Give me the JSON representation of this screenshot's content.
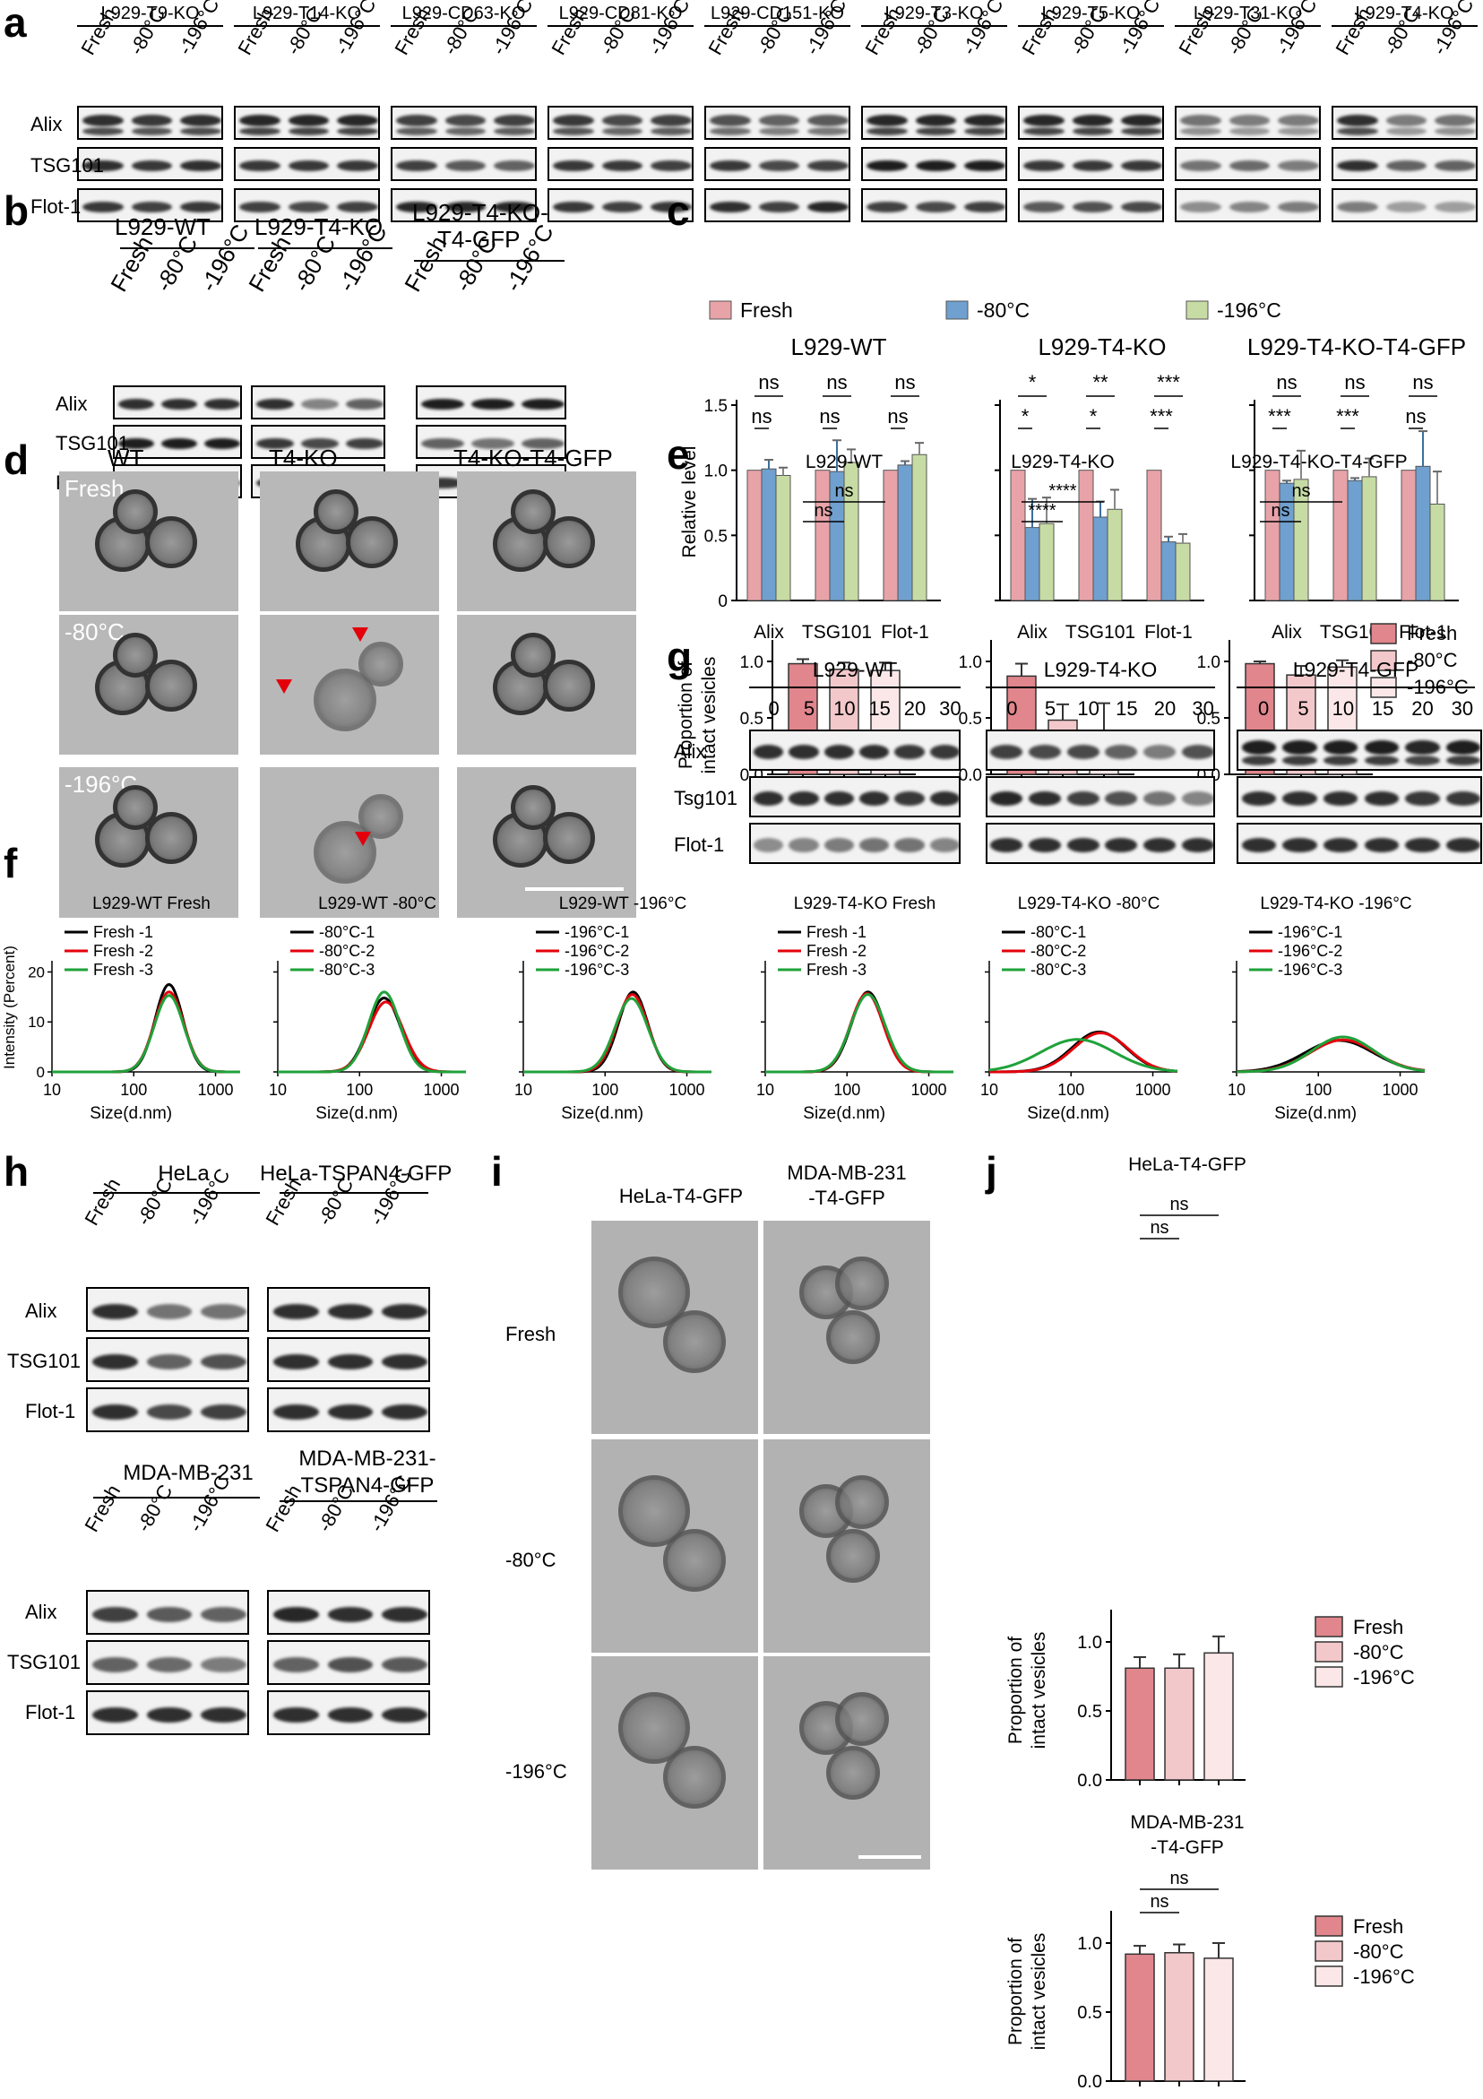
{
  "panels": {
    "a": "a",
    "b": "b",
    "c": "c",
    "d": "d",
    "e": "e",
    "f": "f",
    "g": "g",
    "h": "h",
    "i": "i",
    "j": "j"
  },
  "conditions": [
    "Fresh",
    "-80°C",
    "-196°C"
  ],
  "proteins": [
    "Alix",
    "TSG101",
    "Flot-1"
  ],
  "panel_a": {
    "cell_lines": [
      "L929-T9-KO",
      "L929-T14-KO",
      "L929-CD63-KO",
      "L929-CD81-KO",
      "L929-CD151-KO",
      "L929-T3-KO",
      "L929-T5-KO",
      "L929-T31-KO",
      "L929-T4-KO"
    ]
  },
  "panel_b": {
    "groups": [
      "L929-WT",
      "L929-T4-KO",
      "L929-T4-KO-\nT4-GFP"
    ],
    "group3_line1": "L929-T4-KO-",
    "group3_line2": "T4-GFP"
  },
  "panel_c": {
    "legend": [
      "Fresh",
      "-80°C",
      "-196°C"
    ],
    "ylabel": "Relative level",
    "titles": [
      "L929-WT",
      "L929-T4-KO",
      "L929-T4-KO-T4-GFP"
    ],
    "categories": [
      "Alix",
      "TSG101",
      "Flot-1"
    ],
    "yticks": [
      "0",
      "0.5",
      "1.0",
      "1.5"
    ],
    "sig": {
      "wt": [
        "ns",
        "ns",
        "ns",
        "ns",
        "ns",
        "ns"
      ],
      "ko": [
        "*",
        "*",
        "**",
        "*",
        "***",
        "***"
      ],
      "gfp": [
        "ns",
        "***",
        "ns",
        "***",
        "ns",
        "ns"
      ]
    }
  },
  "panel_d": {
    "cols": [
      "WT",
      "T4-KO",
      "T4-KO-T4-GFP"
    ],
    "rows": [
      "Fresh",
      "-80°C",
      "-196°C"
    ]
  },
  "panel_e": {
    "titles": [
      "L929-WT",
      "L929-T4-KO",
      "L929-T4-KO-T4-GFP"
    ],
    "ylabel_line1": "Proportion of",
    "ylabel_line2": "intact vesicles",
    "yticks": [
      "0.0",
      "0.5",
      "1.0"
    ],
    "legend": [
      "Fresh",
      "-80°C",
      "-196°C"
    ],
    "sig": {
      "wt": [
        "ns",
        "ns"
      ],
      "ko": [
        "****",
        "****"
      ],
      "gfp": [
        "ns",
        "ns"
      ]
    }
  },
  "panel_f": {
    "titles": [
      "L929-WT Fresh",
      "L929-WT -80°C",
      "L929-WT -196°C",
      "L929-T4-KO Fresh",
      "L929-T4-KO -80°C",
      "L929-T4-KO -196°C"
    ],
    "legends": [
      [
        "Fresh -1",
        "Fresh  -2",
        "Fresh -3"
      ],
      [
        "-80°C-1",
        "-80°C-2",
        "-80°C-3"
      ],
      [
        "-196°C-1",
        "-196°C-2",
        "-196°C-3"
      ],
      [
        "Fresh -1",
        "Fresh -2",
        "Fresh -3"
      ],
      [
        "-80°C-1",
        "-80°C-2",
        "-80°C-3"
      ],
      [
        "-196°C-1",
        "-196°C-2",
        "-196°C-3"
      ]
    ],
    "ylabel": "Intensity (Percent)",
    "xlabel": "Size(d.nm)",
    "xticks": [
      "10",
      "100",
      "1000"
    ],
    "yticks": [
      "0",
      "10",
      "20"
    ]
  },
  "panel_g": {
    "groups": [
      "L929-WT",
      "L929-T4-KO",
      "L929-T4-GFP"
    ],
    "times": [
      "0",
      "5",
      "10",
      "15",
      "20",
      "30"
    ],
    "rows": [
      "Alix",
      "Tsg101",
      "Flot-1"
    ]
  },
  "panel_h": {
    "top_groups": [
      "HeLa",
      "HeLa-TSPAN4-GFP"
    ],
    "bottom_groups": [
      "MDA-MB-231",
      "MDA-MB-231-",
      "TSPAN4-GFP"
    ]
  },
  "panel_i": {
    "cols": [
      "HeLa-T4-GFP",
      "MDA-MB-231",
      "-T4-GFP"
    ],
    "rows": [
      "Fresh",
      "-80°C",
      "-196°C"
    ]
  },
  "panel_j": {
    "title1": "HeLa-T4-GFP",
    "title2_line1": "MDA-MB-231",
    "title2_line2": "-T4-GFP",
    "yticks": [
      "0.0",
      "0.5",
      "1.0"
    ],
    "legend": [
      "Fresh",
      "-80°C",
      "-196°C"
    ],
    "sig": [
      "ns",
      "ns"
    ]
  },
  "chart_data": [
    {
      "type": "bar",
      "title": "L929-WT",
      "categories": [
        "Alix",
        "TSG101",
        "Flot-1"
      ],
      "ylabel": "Relative level",
      "ylim": [
        0,
        1.5
      ],
      "series": [
        {
          "name": "Fresh",
          "values": [
            1.0,
            1.0,
            1.0
          ],
          "errors": [
            0,
            0,
            0
          ]
        },
        {
          "name": "-80°C",
          "values": [
            1.01,
            0.99,
            1.04
          ],
          "errors": [
            0.07,
            0.24,
            0.03
          ]
        },
        {
          "name": "-196°C",
          "values": [
            0.96,
            1.06,
            1.12
          ],
          "errors": [
            0.06,
            0.1,
            0.09
          ]
        }
      ]
    },
    {
      "type": "bar",
      "title": "L929-T4-KO",
      "categories": [
        "Alix",
        "TSG101",
        "Flot-1"
      ],
      "ylim": [
        0,
        1.5
      ],
      "series": [
        {
          "name": "Fresh",
          "values": [
            1.0,
            1.0,
            1.0
          ],
          "errors": [
            0,
            0,
            0
          ]
        },
        {
          "name": "-80°C",
          "values": [
            0.56,
            0.64,
            0.45
          ],
          "errors": [
            0.22,
            0.12,
            0.04
          ]
        },
        {
          "name": "-196°C",
          "values": [
            0.59,
            0.7,
            0.44
          ],
          "errors": [
            0.2,
            0.15,
            0.07
          ]
        }
      ]
    },
    {
      "type": "bar",
      "title": "L929-T4-KO-T4-GFP",
      "categories": [
        "Alix",
        "TSG101",
        "Flot-1"
      ],
      "ylim": [
        0,
        1.5
      ],
      "series": [
        {
          "name": "Fresh",
          "values": [
            1.0,
            1.0,
            1.0
          ],
          "errors": [
            0,
            0,
            0
          ]
        },
        {
          "name": "-80°C",
          "values": [
            0.9,
            0.92,
            1.03
          ],
          "errors": [
            0.02,
            0.02,
            0.27
          ]
        },
        {
          "name": "-196°C",
          "values": [
            0.93,
            0.95,
            0.74
          ],
          "errors": [
            0.22,
            0.14,
            0.25
          ]
        }
      ]
    },
    {
      "type": "bar",
      "title": "L929-WT",
      "categories": [
        "Fresh",
        "-80°C",
        "-196°C"
      ],
      "ylabel": "Proportion of intact vesicles",
      "ylim": [
        0,
        1.2
      ],
      "values": [
        0.98,
        0.93,
        0.92
      ],
      "errors": [
        0.04,
        0.06,
        0.07
      ]
    },
    {
      "type": "bar",
      "title": "L929-T4-KO",
      "categories": [
        "Fresh",
        "-80°C",
        "-196°C"
      ],
      "ylim": [
        0,
        1.2
      ],
      "values": [
        0.87,
        0.48,
        0.38
      ],
      "errors": [
        0.11,
        0.14,
        0.25
      ]
    },
    {
      "type": "bar",
      "title": "L929-T4-KO-T4-GFP",
      "categories": [
        "Fresh",
        "-80°C",
        "-196°C"
      ],
      "ylim": [
        0,
        1.2
      ],
      "values": [
        0.98,
        0.88,
        0.95
      ],
      "errors": [
        0.02,
        0.08,
        0.06
      ]
    },
    {
      "type": "line",
      "title": "DLS size distributions",
      "xlabel": "Size(d.nm)",
      "ylabel": "Intensity (Percent)",
      "xscale": "log",
      "xlim": [
        10,
        2000
      ],
      "ylim": [
        0,
        20
      ],
      "peaks": [
        {
          "panel": "L929-WT Fresh",
          "series": [
            {
              "name": "Fresh -1",
              "peak_x": 270,
              "peak_y": 17.5,
              "sd": 0.17
            },
            {
              "name": "Fresh  -2",
              "peak_x": 270,
              "peak_y": 16.0,
              "sd": 0.18
            },
            {
              "name": "Fresh -3",
              "peak_x": 270,
              "peak_y": 15.3,
              "sd": 0.18
            }
          ]
        },
        {
          "panel": "L929-WT -80°C",
          "series": [
            {
              "name": "-80°C-1",
              "peak_x": 200,
              "peak_y": 14.8,
              "sd": 0.2
            },
            {
              "name": "-80°C-2",
              "peak_x": 210,
              "peak_y": 14.0,
              "sd": 0.21
            },
            {
              "name": "-80°C-3",
              "peak_x": 200,
              "peak_y": 16.0,
              "sd": 0.19
            }
          ]
        },
        {
          "panel": "L929-WT -196°C",
          "series": [
            {
              "name": "-196°C-1",
              "peak_x": 220,
              "peak_y": 16.0,
              "sd": 0.18
            },
            {
              "name": "-196°C-2",
              "peak_x": 215,
              "peak_y": 15.5,
              "sd": 0.19
            },
            {
              "name": "-196°C-3",
              "peak_x": 210,
              "peak_y": 14.7,
              "sd": 0.2
            }
          ]
        },
        {
          "panel": "L929-T4-KO Fresh",
          "series": [
            {
              "name": "Fresh -1",
              "peak_x": 180,
              "peak_y": 16.0,
              "sd": 0.2
            },
            {
              "name": "Fresh -2",
              "peak_x": 175,
              "peak_y": 15.7,
              "sd": 0.2
            },
            {
              "name": "Fresh -3",
              "peak_x": 180,
              "peak_y": 15.5,
              "sd": 0.21
            }
          ]
        },
        {
          "panel": "L929-T4-KO -80°C",
          "series": [
            {
              "name": "-80°C-1",
              "peak_x": 220,
              "peak_y": 8.0,
              "sd": 0.33
            },
            {
              "name": "-80°C-2",
              "peak_x": 230,
              "peak_y": 7.8,
              "sd": 0.33
            },
            {
              "name": "-80°C-3",
              "peak_x": 120,
              "peak_y": 6.5,
              "sd": 0.45
            }
          ]
        },
        {
          "panel": "L929-T4-KO -196°C",
          "series": [
            {
              "name": "-196°C-1",
              "peak_x": 180,
              "peak_y": 6.3,
              "sd": 0.42
            },
            {
              "name": "-196°C-2",
              "peak_x": 200,
              "peak_y": 6.4,
              "sd": 0.4
            },
            {
              "name": "-196°C-3",
              "peak_x": 200,
              "peak_y": 7.0,
              "sd": 0.38
            }
          ]
        }
      ]
    },
    {
      "type": "bar",
      "title": "HeLa-T4-GFP",
      "categories": [
        "Fresh",
        "-80°C",
        "-196°C"
      ],
      "ylabel": "Proportion of intact vesicles",
      "ylim": [
        0,
        1.2
      ],
      "values": [
        0.81,
        0.81,
        0.92
      ],
      "errors": [
        0.08,
        0.1,
        0.12
      ]
    },
    {
      "type": "bar",
      "title": "MDA-MB-231 -T4-GFP",
      "categories": [
        "Fresh",
        "-80°C",
        "-196°C"
      ],
      "ylabel": "Proportion of intact vesicles",
      "ylim": [
        0,
        1.2
      ],
      "values": [
        0.92,
        0.93,
        0.89
      ],
      "errors": [
        0.06,
        0.06,
        0.11
      ]
    }
  ],
  "colors": {
    "fresh": "#e8a3a8",
    "m80": "#6fa0cf",
    "m196": "#c7dca4",
    "e_fresh": "#e0868c",
    "e_m80": "#f3c8ca",
    "e_m196": "#fbe7e8",
    "line1": "#000000",
    "line2": "#e3000b",
    "line3": "#1fa23a",
    "arrow": "#e3000b"
  },
  "scale_bar": ""
}
